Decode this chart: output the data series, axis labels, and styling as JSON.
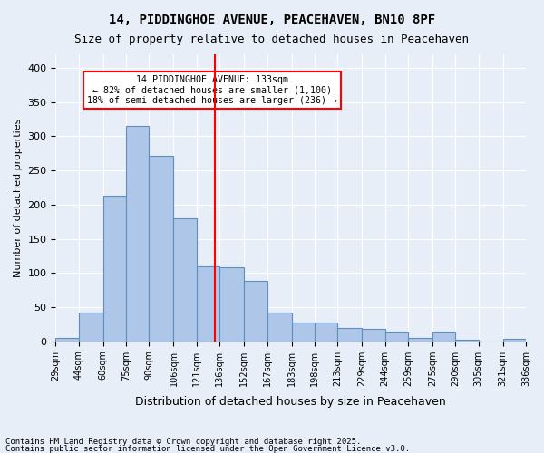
{
  "title1": "14, PIDDINGHOE AVENUE, PEACEHAVEN, BN10 8PF",
  "title2": "Size of property relative to detached houses in Peacehaven",
  "xlabel": "Distribution of detached houses by size in Peacehaven",
  "ylabel": "Number of detached properties",
  "bin_labels": [
    "29sqm",
    "44sqm",
    "60sqm",
    "75sqm",
    "90sqm",
    "106sqm",
    "121sqm",
    "136sqm",
    "152sqm",
    "167sqm",
    "183sqm",
    "198sqm",
    "213sqm",
    "229sqm",
    "244sqm",
    "259sqm",
    "275sqm",
    "290sqm",
    "305sqm",
    "321sqm",
    "336sqm"
  ],
  "bin_edges": [
    29,
    44,
    60,
    75,
    90,
    106,
    121,
    136,
    152,
    167,
    183,
    198,
    213,
    229,
    244,
    259,
    275,
    290,
    305,
    321,
    336
  ],
  "bar_heights": [
    5,
    42,
    213,
    315,
    272,
    180,
    110,
    108,
    88,
    42,
    28,
    28,
    20,
    18,
    14,
    5,
    14,
    2,
    0,
    3
  ],
  "bar_color": "#aec6e8",
  "bar_edge_color": "#5a8fc0",
  "bg_color": "#e8eef7",
  "vline_x": 133,
  "vline_color": "red",
  "annotation_text": "14 PIDDINGHOE AVENUE: 133sqm\n← 82% of detached houses are smaller (1,100)\n18% of semi-detached houses are larger (236) →",
  "annotation_box_color": "white",
  "annotation_box_edge": "red",
  "footer1": "Contains HM Land Registry data © Crown copyright and database right 2025.",
  "footer2": "Contains public sector information licensed under the Open Government Licence v3.0.",
  "ylim": [
    0,
    420
  ],
  "yticks": [
    0,
    50,
    100,
    150,
    200,
    250,
    300,
    350,
    400
  ]
}
